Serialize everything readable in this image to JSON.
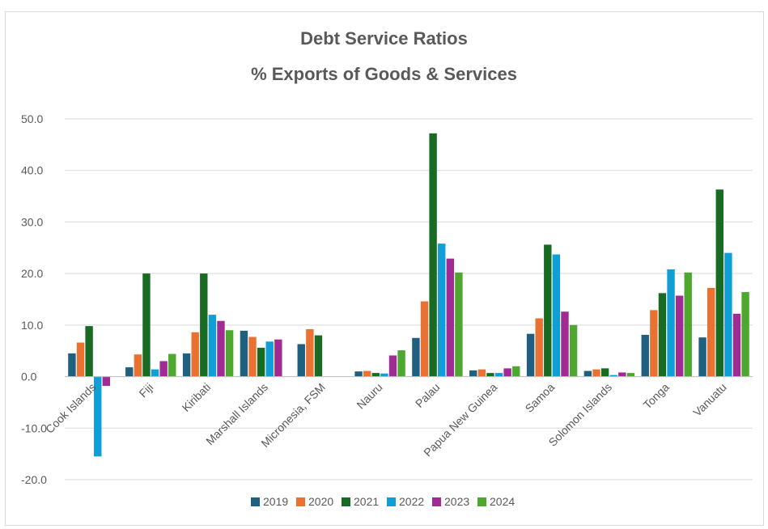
{
  "chart_data": {
    "type": "bar",
    "title": "Debt Service Ratios",
    "subtitle": "% Exports of Goods & Services",
    "xlabel": "",
    "ylabel": "",
    "ylim": [
      -20,
      50
    ],
    "yticks": [
      "50.0",
      "40.0",
      "30.0",
      "20.0",
      "10.0",
      "0.0",
      "-10.0",
      "-20.0"
    ],
    "grid": true,
    "legend_position": "bottom",
    "categories": [
      "Cook Islands",
      "Fiji",
      "Kiribati",
      "Marshall Islands",
      "Micronesia, FSM",
      "Nauru",
      "Palau",
      "Papua New Guinea",
      "Samoa",
      "Solomon Islands",
      "Tonga",
      "Vanuatu"
    ],
    "series": [
      {
        "name": "2019",
        "color": "#1f5f7f",
        "values": [
          4.5,
          1.8,
          4.5,
          8.9,
          6.3,
          1.0,
          7.5,
          1.2,
          8.3,
          1.1,
          8.1,
          7.6
        ]
      },
      {
        "name": "2020",
        "color": "#e97132",
        "values": [
          6.6,
          4.3,
          8.6,
          7.7,
          9.2,
          1.1,
          14.6,
          1.4,
          11.3,
          1.4,
          12.9,
          17.2
        ]
      },
      {
        "name": "2021",
        "color": "#196b24",
        "values": [
          9.8,
          20.0,
          20.0,
          5.6,
          8.0,
          0.7,
          47.2,
          0.7,
          25.6,
          1.6,
          16.2,
          36.3
        ]
      },
      {
        "name": "2022",
        "color": "#0f9ed5",
        "values": [
          -15.5,
          1.4,
          12.0,
          6.8,
          0.0,
          0.6,
          25.8,
          0.7,
          23.7,
          0.3,
          20.8,
          24.0
        ]
      },
      {
        "name": "2023",
        "color": "#a02b93",
        "values": [
          -1.8,
          3.0,
          10.8,
          7.2,
          0.0,
          4.1,
          22.9,
          1.6,
          12.6,
          0.8,
          15.7,
          12.2
        ]
      },
      {
        "name": "2024",
        "color": "#4ea72e",
        "values": [
          0.0,
          4.4,
          9.0,
          0.0,
          0.0,
          5.1,
          20.2,
          2.0,
          10.0,
          0.7,
          20.2,
          16.4
        ]
      }
    ]
  }
}
